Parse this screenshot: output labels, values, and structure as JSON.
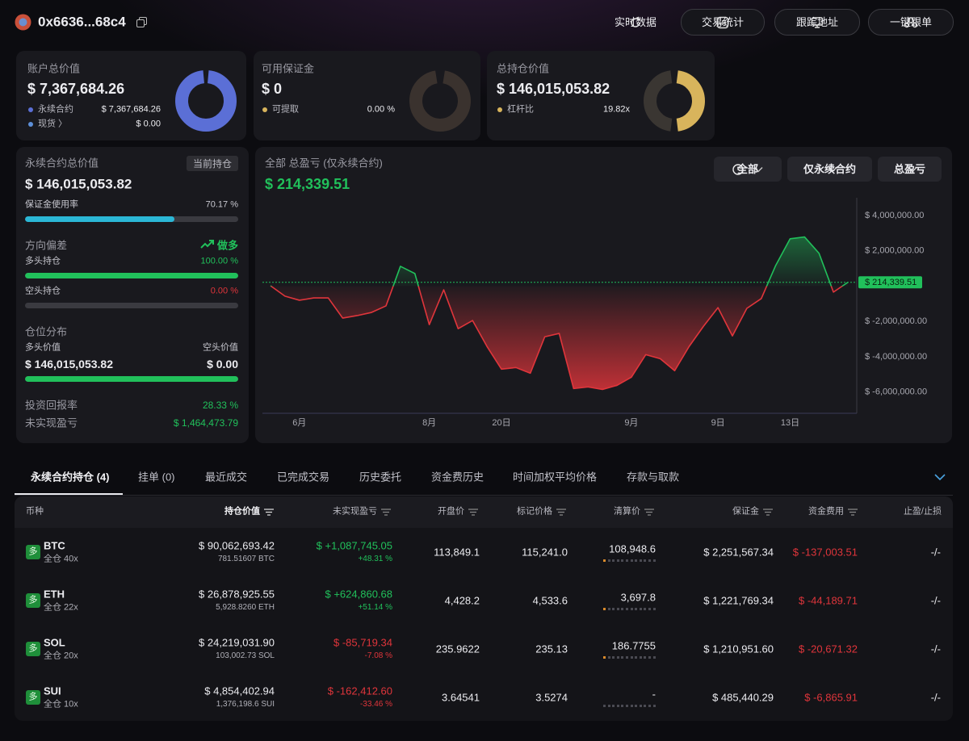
{
  "header": {
    "address": "0x6636...68c4",
    "buttons": [
      "实时数据",
      "交易统计",
      "跟踪地址",
      "一键跟单"
    ]
  },
  "summary_cards": [
    {
      "label": "账户总价值",
      "value": "$ 7,367,684.26",
      "rows": [
        {
          "label": "永续合约",
          "value": "$ 7,367,684.26"
        },
        {
          "label": "现货 〉",
          "value": "$ 0.00"
        }
      ]
    },
    {
      "label": "可用保证金",
      "value": "$ 0",
      "rows": [
        {
          "label": "可提取",
          "value": "0.00 %"
        }
      ]
    },
    {
      "label": "总持仓价值",
      "value": "$ 146,015,053.82",
      "rows": [
        {
          "label": "杠杆比",
          "value": "19.82x"
        }
      ]
    }
  ],
  "perp_panel": {
    "title": "永续合约总价值",
    "badge": "当前持仓",
    "value": "$ 146,015,053.82",
    "margin_usage": {
      "label": "保证金使用率",
      "value": "70.17 %"
    },
    "direction": {
      "label": "方向偏差",
      "value": "做多",
      "long": {
        "label": "多头持仓",
        "value": "100.00 %"
      },
      "short": {
        "label": "空头持仓",
        "value": "0.00 %"
      }
    },
    "distribution": {
      "label": "仓位分布",
      "long_label": "多头价值",
      "short_label": "空头价值",
      "long_value": "$ 146,015,053.82",
      "short_value": "$ 0.00"
    },
    "roi": {
      "label": "投资回报率",
      "value": "28.33 %"
    },
    "unrealized": {
      "label": "未实现盈亏",
      "value": "$ 1,464,473.79"
    }
  },
  "pnl_panel": {
    "title": "全部 总盈亏 (仅永续合约)",
    "value": "$ 214,339.51",
    "filters": [
      "全部",
      "仅永续合约",
      "总盈亏"
    ]
  },
  "chart_data": {
    "type": "line",
    "categories": [
      null,
      null,
      "6月",
      null,
      null,
      null,
      null,
      null,
      null,
      null,
      null,
      "8月",
      null,
      null,
      null,
      null,
      "20日",
      null,
      null,
      null,
      null,
      null,
      null,
      null,
      null,
      "9月",
      null,
      null,
      null,
      null,
      null,
      "9日",
      null,
      null,
      null,
      null,
      "13日",
      null,
      null,
      null,
      null
    ],
    "values": [
      20000,
      -570000,
      -800000,
      -670000,
      -670000,
      -1810000,
      -1670000,
      -1490000,
      -1120000,
      1120000,
      710000,
      -2180000,
      -210000,
      -2410000,
      -1950000,
      -3420000,
      -4700000,
      -4610000,
      -4930000,
      -2870000,
      -2680000,
      -5800000,
      -5710000,
      -5850000,
      -5620000,
      -5160000,
      -3880000,
      -4110000,
      -4790000,
      -3420000,
      -2270000,
      -1220000,
      -2820000,
      -1260000,
      -710000,
      1170000,
      2680000,
      2780000,
      1860000,
      -340000,
      214339.51
    ],
    "color_up": "#21c05b",
    "color_down": "#e0353b",
    "ylim": [
      -7200000,
      5000000
    ],
    "yticks": [
      {
        "value": 4000000,
        "label": "$ 4,000,000.00"
      },
      {
        "value": 2000000,
        "label": "$ 2,000,000.00"
      },
      {
        "value": -2000000,
        "label": "$ -2,000,000.00"
      },
      {
        "value": -4000000,
        "label": "$ -4,000,000.00"
      },
      {
        "value": -6000000,
        "label": "$ -6,000,000.00"
      }
    ],
    "reference_line": {
      "value": 214339.51,
      "label": "$ 214,339.51"
    }
  },
  "positions": {
    "tabs": [
      "永续合约持仓 (4)",
      "挂单 (0)",
      "最近成交",
      "已完成交易",
      "历史委托",
      "资金费历史",
      "时间加权平均价格",
      "存款与取款"
    ],
    "headers": [
      "币种",
      "持仓价值",
      "未实现盈亏",
      "开盘价",
      "标记价格",
      "清算价",
      "保证金",
      "资金费用",
      "止盈/止损"
    ],
    "rows": [
      {
        "side": "多",
        "symbol": "BTC",
        "mode": "全仓 40x",
        "value": "$ 90,062,693.42",
        "size": "781.51607 BTC",
        "pnl": "$ +1,087,745.05",
        "pnl_pct": "+48.31 %",
        "entry": "113,849.1",
        "mark": "115,241.0",
        "liq": "108,948.6",
        "margin": "$ 2,251,567.34",
        "funding": "$ -137,003.51",
        "tpsl": "-/-"
      },
      {
        "side": "多",
        "symbol": "ETH",
        "mode": "全仓 22x",
        "value": "$ 26,878,925.55",
        "size": "5,928.8260 ETH",
        "pnl": "$ +624,860.68",
        "pnl_pct": "+51.14 %",
        "entry": "4,428.2",
        "mark": "4,533.6",
        "liq": "3,697.8",
        "margin": "$ 1,221,769.34",
        "funding": "$ -44,189.71",
        "tpsl": "-/-"
      },
      {
        "side": "多",
        "symbol": "SOL",
        "mode": "全仓 20x",
        "value": "$ 24,219,031.90",
        "size": "103,002.73 SOL",
        "pnl": "$ -85,719.34",
        "pnl_pct": "-7.08 %",
        "entry": "235.9622",
        "mark": "235.13",
        "liq": "186.7755",
        "margin": "$ 1,210,951.60",
        "funding": "$ -20,671.32",
        "tpsl": "-/-"
      },
      {
        "side": "多",
        "symbol": "SUI",
        "mode": "全仓 10x",
        "value": "$ 4,854,402.94",
        "size": "1,376,198.6 SUI",
        "pnl": "$ -162,412.60",
        "pnl_pct": "-33.46 %",
        "entry": "3.64541",
        "mark": "3.5274",
        "liq": "-",
        "margin": "$ 485,440.29",
        "funding": "$ -6,865.91",
        "tpsl": "-/-"
      }
    ]
  }
}
